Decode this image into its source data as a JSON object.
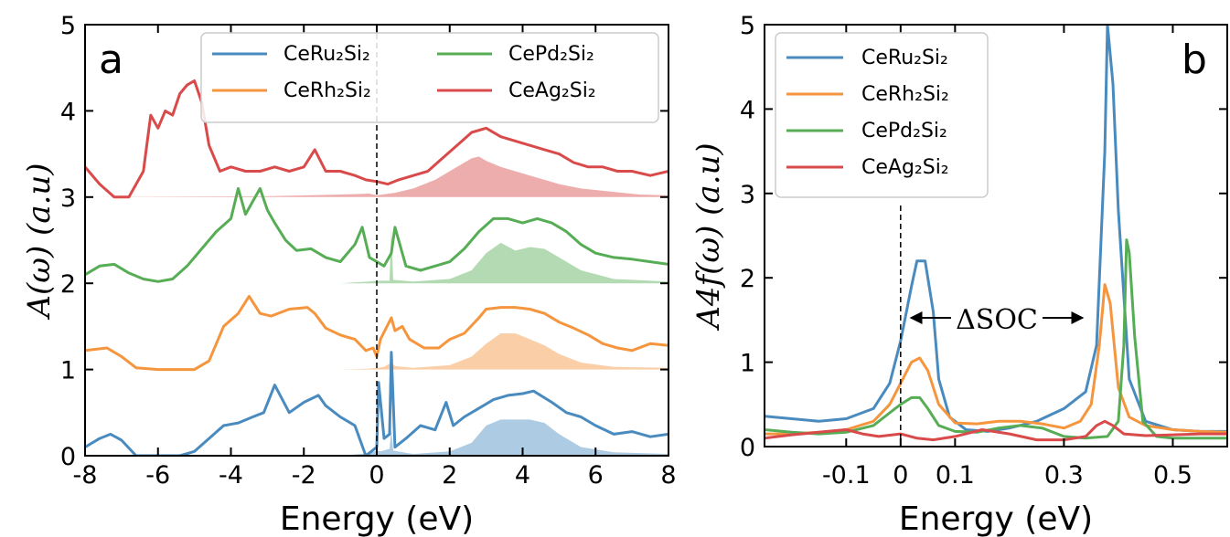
{
  "chart_data": [
    {
      "panel": "a",
      "type": "line",
      "xlabel": "Energy (eV)",
      "ylabel": "A(ω) (a.u)",
      "xlim": [
        -8,
        8
      ],
      "ylim": [
        0,
        5
      ],
      "xticks": [
        "-8",
        "-6",
        "-4",
        "-2",
        "0",
        "2",
        "4",
        "6",
        "8"
      ],
      "yticks": [
        "0",
        "1",
        "2",
        "3",
        "4",
        "5"
      ],
      "legend": {
        "placement": "top-right",
        "columns": 2
      },
      "fermi_line": 0,
      "series": [
        {
          "name": "CeRu₂Si₂",
          "color": "#4a8bbf",
          "offset": 0,
          "x": [
            -8,
            -7.6,
            -7.3,
            -7,
            -6.6,
            -6.2,
            -5.8,
            -5.4,
            -5.0,
            -4.6,
            -4.2,
            -3.8,
            -3.4,
            -3.1,
            -2.8,
            -2.4,
            -2.0,
            -1.6,
            -1.4,
            -1.0,
            -0.6,
            -0.3,
            0,
            0.05,
            0.2,
            0.35,
            0.4,
            0.5,
            0.8,
            1.2,
            1.6,
            1.9,
            2.1,
            2.4,
            2.8,
            3.2,
            3.6,
            4.0,
            4.3,
            4.8,
            5.2,
            5.6,
            6.0,
            6.5,
            7.0,
            7.5,
            8
          ],
          "y": [
            0.1,
            0.2,
            0.25,
            0.18,
            0.0,
            0.0,
            0.0,
            0.0,
            0.05,
            0.2,
            0.35,
            0.38,
            0.45,
            0.5,
            0.82,
            0.5,
            0.62,
            0.7,
            0.58,
            0.45,
            0.35,
            0.0,
            0.1,
            0.85,
            0.2,
            0.25,
            1.2,
            0.1,
            0.2,
            0.35,
            0.3,
            0.62,
            0.35,
            0.45,
            0.55,
            0.65,
            0.7,
            0.72,
            0.75,
            0.62,
            0.5,
            0.45,
            0.35,
            0.25,
            0.28,
            0.22,
            0.25
          ],
          "f_part": {
            "x": [
              -8,
              -1.0,
              -0.2,
              0.0,
              0.1,
              0.35,
              0.4,
              0.45,
              1.0,
              2.0,
              2.6,
              3.0,
              3.4,
              3.8,
              4.2,
              4.6,
              5.0,
              5.6,
              6.5,
              8
            ],
            "y": [
              0,
              0.0,
              0.03,
              0.06,
              0.05,
              0.08,
              0.3,
              0.06,
              0.02,
              0.05,
              0.15,
              0.35,
              0.42,
              0.42,
              0.42,
              0.38,
              0.25,
              0.1,
              0.04,
              0.02
            ]
          }
        },
        {
          "name": "CeRh₂Si₂",
          "color": "#f5953d",
          "offset": 1,
          "x": [
            -8,
            -7.4,
            -7.0,
            -6.6,
            -6.0,
            -5.4,
            -5.0,
            -4.6,
            -4.2,
            -3.8,
            -3.5,
            -3.2,
            -2.9,
            -2.4,
            -1.9,
            -1.7,
            -1.4,
            -1.0,
            -0.6,
            -0.3,
            -0.1,
            0,
            0.1,
            0.4,
            0.5,
            0.7,
            0.9,
            1.3,
            1.7,
            2.0,
            2.4,
            2.8,
            3.0,
            3.4,
            3.8,
            4.2,
            4.6,
            5.0,
            5.4,
            5.8,
            6.2,
            6.6,
            7.0,
            7.5,
            8
          ],
          "y": [
            0.22,
            0.25,
            0.15,
            0.02,
            0.0,
            0.0,
            0.0,
            0.1,
            0.5,
            0.65,
            0.85,
            0.65,
            0.62,
            0.7,
            0.72,
            0.65,
            0.48,
            0.4,
            0.35,
            0.22,
            0.25,
            0.15,
            0.35,
            0.6,
            0.45,
            0.5,
            0.35,
            0.25,
            0.25,
            0.35,
            0.42,
            0.6,
            0.7,
            0.72,
            0.72,
            0.7,
            0.65,
            0.55,
            0.48,
            0.4,
            0.3,
            0.25,
            0.22,
            0.3,
            0.28
          ],
          "f_part": {
            "x": [
              -8,
              -1.0,
              -0.2,
              0.0,
              0.2,
              0.4,
              0.5,
              1.0,
              2.0,
              2.6,
              3.0,
              3.4,
              3.8,
              4.2,
              4.6,
              5.0,
              5.6,
              6.5,
              8
            ],
            "y": [
              0,
              0.0,
              0.01,
              0.02,
              0.03,
              0.08,
              0.04,
              0.02,
              0.05,
              0.15,
              0.3,
              0.42,
              0.42,
              0.35,
              0.28,
              0.18,
              0.08,
              0.03,
              0.02
            ]
          }
        },
        {
          "name": "CePd₂Si₂",
          "color": "#57ad55",
          "offset": 2,
          "x": [
            -8,
            -7.6,
            -7.2,
            -6.8,
            -6.4,
            -6.0,
            -5.6,
            -5.2,
            -4.8,
            -4.4,
            -4.0,
            -3.8,
            -3.6,
            -3.4,
            -3.2,
            -3.0,
            -2.8,
            -2.5,
            -2.2,
            -1.8,
            -1.4,
            -1.0,
            -0.6,
            -0.4,
            -0.2,
            0,
            0.2,
            0.4,
            0.5,
            0.8,
            1.2,
            1.6,
            2.0,
            2.4,
            2.8,
            3.2,
            3.6,
            4.0,
            4.4,
            4.8,
            5.2,
            5.6,
            6.0,
            6.5,
            7.0,
            7.5,
            8
          ],
          "y": [
            0.1,
            0.2,
            0.22,
            0.12,
            0.05,
            0.02,
            0.05,
            0.2,
            0.4,
            0.6,
            0.75,
            1.1,
            0.8,
            0.95,
            1.1,
            0.85,
            0.7,
            0.5,
            0.38,
            0.4,
            0.3,
            0.25,
            0.45,
            0.65,
            0.3,
            0.25,
            0.2,
            0.35,
            0.65,
            0.2,
            0.15,
            0.2,
            0.25,
            0.4,
            0.6,
            0.75,
            0.75,
            0.7,
            0.75,
            0.7,
            0.6,
            0.45,
            0.35,
            0.3,
            0.28,
            0.25,
            0.22
          ],
          "f_part": {
            "x": [
              -8,
              -1.0,
              -0.2,
              0.0,
              0.35,
              0.4,
              0.45,
              1.0,
              2.0,
              2.6,
              3.0,
              3.4,
              3.8,
              4.2,
              4.6,
              5.0,
              5.6,
              6.5,
              8
            ],
            "y": [
              0,
              0.0,
              0.02,
              0.03,
              0.03,
              0.65,
              0.04,
              0.02,
              0.05,
              0.15,
              0.35,
              0.47,
              0.38,
              0.42,
              0.4,
              0.3,
              0.15,
              0.05,
              0.02
            ]
          }
        },
        {
          "name": "CeAg₂Si₂",
          "color": "#d94a4a",
          "offset": 3,
          "x": [
            -8,
            -7.6,
            -7.2,
            -6.8,
            -6.4,
            -6.2,
            -6.0,
            -5.8,
            -5.6,
            -5.4,
            -5.2,
            -5.0,
            -4.8,
            -4.6,
            -4.3,
            -4.0,
            -3.6,
            -3.2,
            -2.8,
            -2.4,
            -2.0,
            -1.7,
            -1.4,
            -1.0,
            -0.6,
            -0.3,
            0,
            0.3,
            0.6,
            1.0,
            1.4,
            1.8,
            2.2,
            2.6,
            3.0,
            3.4,
            3.8,
            4.2,
            4.6,
            5.0,
            5.4,
            5.8,
            6.2,
            6.6,
            7.0,
            7.5,
            8
          ],
          "y": [
            0.35,
            0.15,
            0.0,
            0.0,
            0.3,
            0.95,
            0.8,
            1.0,
            0.95,
            1.2,
            1.3,
            1.35,
            1.1,
            0.6,
            0.3,
            0.35,
            0.3,
            0.3,
            0.35,
            0.3,
            0.35,
            0.55,
            0.3,
            0.3,
            0.25,
            0.2,
            0.18,
            0.15,
            0.2,
            0.25,
            0.3,
            0.45,
            0.6,
            0.75,
            0.8,
            0.7,
            0.65,
            0.6,
            0.55,
            0.5,
            0.4,
            0.35,
            0.35,
            0.3,
            0.3,
            0.25,
            0.3
          ],
          "f_part": {
            "x": [
              -8,
              -3.0,
              -1.0,
              -0.2,
              0.0,
              0.5,
              1.0,
              1.6,
              2.2,
              2.6,
              2.8,
              3.0,
              3.4,
              3.8,
              4.2,
              4.6,
              5.0,
              5.6,
              6.5,
              7.2,
              8
            ],
            "y": [
              0,
              0.01,
              0.03,
              0.04,
              0.02,
              0.05,
              0.1,
              0.2,
              0.35,
              0.45,
              0.47,
              0.42,
              0.35,
              0.3,
              0.25,
              0.2,
              0.15,
              0.1,
              0.06,
              0.03,
              0.02
            ]
          }
        }
      ]
    },
    {
      "panel": "b",
      "type": "line",
      "xlabel": "Energy (eV)",
      "ylabel": "A4f(ω) (a.u)",
      "xlim": [
        -0.25,
        0.6
      ],
      "ylim": [
        0,
        5
      ],
      "xticks": [
        "-0.1",
        "0",
        "0.1",
        "0.3",
        "0.5"
      ],
      "yticks": [
        "0",
        "1",
        "2",
        "3",
        "4",
        "5"
      ],
      "legend": {
        "placement": "top-left",
        "columns": 1
      },
      "annotation": "ΔSOC",
      "fermi_line": 0,
      "series": [
        {
          "name": "CeRu₂Si₂",
          "color": "#4a8bbf",
          "x": [
            -0.25,
            -0.2,
            -0.15,
            -0.1,
            -0.05,
            -0.02,
            0.0,
            0.02,
            0.03,
            0.045,
            0.06,
            0.07,
            0.09,
            0.12,
            0.16,
            0.2,
            0.25,
            0.3,
            0.34,
            0.36,
            0.375,
            0.38,
            0.39,
            0.4,
            0.42,
            0.45,
            0.5,
            0.55,
            0.6
          ],
          "y": [
            0.36,
            0.33,
            0.3,
            0.33,
            0.45,
            0.75,
            1.25,
            1.9,
            2.2,
            2.2,
            1.6,
            0.8,
            0.35,
            0.2,
            0.18,
            0.22,
            0.3,
            0.45,
            0.65,
            1.2,
            3.5,
            5.0,
            4.3,
            2.8,
            0.8,
            0.3,
            0.2,
            0.18,
            0.18
          ]
        },
        {
          "name": "CeRh₂Si₂",
          "color": "#f5953d",
          "x": [
            -0.25,
            -0.2,
            -0.15,
            -0.1,
            -0.05,
            -0.02,
            0.0,
            0.02,
            0.035,
            0.05,
            0.07,
            0.1,
            0.14,
            0.18,
            0.22,
            0.26,
            0.3,
            0.33,
            0.35,
            0.365,
            0.375,
            0.385,
            0.4,
            0.42,
            0.45,
            0.5,
            0.55,
            0.6
          ],
          "y": [
            0.15,
            0.15,
            0.17,
            0.2,
            0.3,
            0.5,
            0.75,
            1.0,
            1.05,
            0.9,
            0.5,
            0.28,
            0.27,
            0.3,
            0.3,
            0.27,
            0.22,
            0.3,
            0.5,
            1.2,
            1.92,
            1.7,
            0.7,
            0.35,
            0.25,
            0.2,
            0.18,
            0.17
          ]
        },
        {
          "name": "CePd₂Si₂",
          "color": "#57ad55",
          "x": [
            -0.25,
            -0.2,
            -0.15,
            -0.1,
            -0.05,
            -0.02,
            0.0,
            0.02,
            0.035,
            0.05,
            0.07,
            0.1,
            0.14,
            0.18,
            0.22,
            0.26,
            0.3,
            0.34,
            0.38,
            0.4,
            0.41,
            0.415,
            0.42,
            0.43,
            0.445,
            0.47,
            0.5,
            0.55,
            0.6
          ],
          "y": [
            0.2,
            0.17,
            0.15,
            0.17,
            0.25,
            0.4,
            0.5,
            0.58,
            0.58,
            0.45,
            0.25,
            0.18,
            0.17,
            0.22,
            0.25,
            0.22,
            0.12,
            0.1,
            0.12,
            0.3,
            1.2,
            2.45,
            2.3,
            1.3,
            0.3,
            0.12,
            0.1,
            0.1,
            0.1
          ]
        },
        {
          "name": "CeAg₂Si₂",
          "color": "#d94a4a",
          "x": [
            -0.25,
            -0.2,
            -0.15,
            -0.1,
            -0.07,
            -0.04,
            0.0,
            0.03,
            0.06,
            0.1,
            0.15,
            0.2,
            0.25,
            0.3,
            0.34,
            0.36,
            0.375,
            0.39,
            0.41,
            0.45,
            0.5,
            0.55,
            0.6
          ],
          "y": [
            0.1,
            0.14,
            0.17,
            0.2,
            0.15,
            0.12,
            0.15,
            0.1,
            0.08,
            0.12,
            0.2,
            0.15,
            0.08,
            0.08,
            0.12,
            0.25,
            0.3,
            0.25,
            0.15,
            0.13,
            0.14,
            0.15,
            0.15
          ]
        }
      ]
    }
  ]
}
